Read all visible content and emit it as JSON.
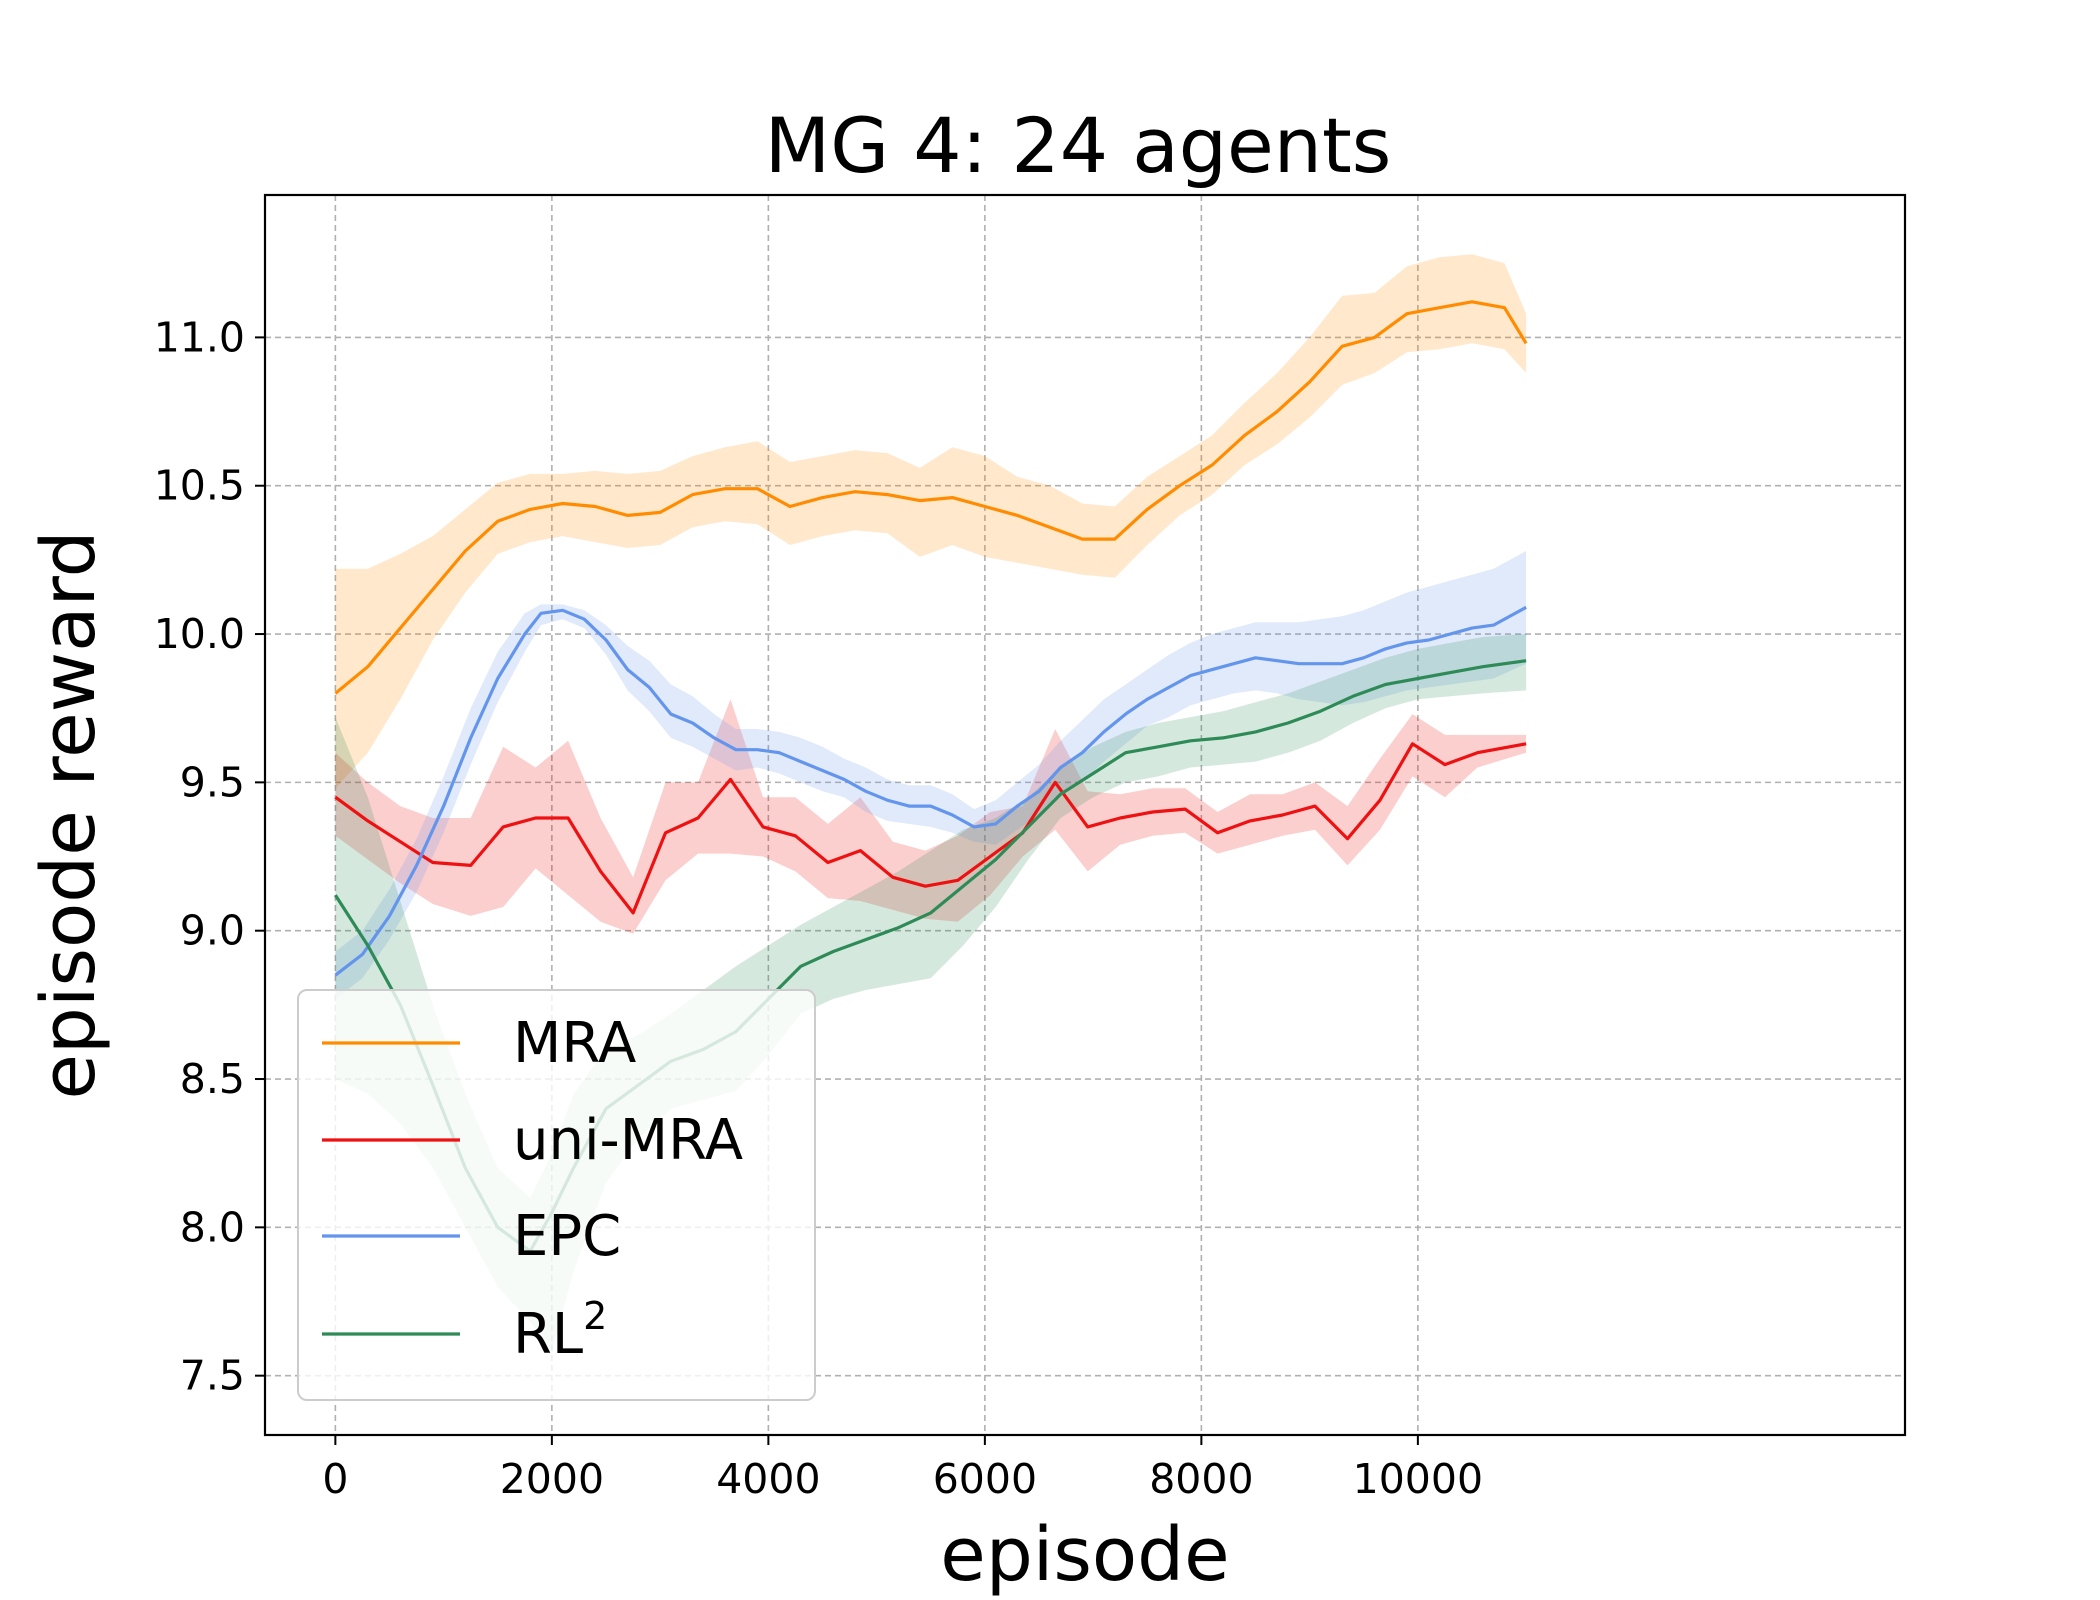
{
  "chart_data": {
    "type": "line",
    "title": "MG 4: 24 agents",
    "xlabel": "episode",
    "ylabel": "episode reward",
    "xlim": [
      -650,
      14500
    ],
    "ylim": [
      7.3,
      11.48
    ],
    "xticks": [
      0,
      2000,
      4000,
      6000,
      8000,
      10000
    ],
    "xtick_labels": [
      "0",
      "2000",
      "4000",
      "6000",
      "8000",
      "10000"
    ],
    "yticks": [
      7.5,
      8.0,
      8.5,
      9.0,
      9.5,
      10.0,
      10.5,
      11.0
    ],
    "ytick_labels": [
      "7.5",
      "8.0",
      "8.5",
      "9.0",
      "9.5",
      "10.0",
      "10.5",
      "11.0"
    ],
    "grid": true,
    "legend_position": "lower-left",
    "series": [
      {
        "name": "MRA",
        "label_main": "MRA",
        "label_sup": "",
        "color": "#ff8c00",
        "x": [
          0,
          300,
          600,
          900,
          1200,
          1500,
          1800,
          2100,
          2400,
          2700,
          3000,
          3300,
          3600,
          3900,
          4200,
          4500,
          4800,
          5100,
          5400,
          5700,
          6000,
          6300,
          6600,
          6900,
          7200,
          7500,
          7800,
          8100,
          8400,
          8700,
          9000,
          9300,
          9600,
          9900,
          10200,
          10500,
          10800,
          11000
        ],
        "y": [
          9.8,
          9.89,
          10.02,
          10.15,
          10.28,
          10.38,
          10.42,
          10.44,
          10.43,
          10.4,
          10.41,
          10.47,
          10.49,
          10.49,
          10.43,
          10.46,
          10.48,
          10.47,
          10.45,
          10.46,
          10.43,
          10.4,
          10.36,
          10.32,
          10.32,
          10.42,
          10.5,
          10.57,
          10.67,
          10.75,
          10.85,
          10.97,
          11.0,
          11.08,
          11.1,
          11.12,
          11.1,
          10.98
        ],
        "upper": [
          10.22,
          10.22,
          10.27,
          10.33,
          10.42,
          10.51,
          10.54,
          10.54,
          10.55,
          10.54,
          10.55,
          10.6,
          10.63,
          10.65,
          10.58,
          10.6,
          10.62,
          10.61,
          10.56,
          10.63,
          10.6,
          10.53,
          10.5,
          10.44,
          10.43,
          10.53,
          10.6,
          10.67,
          10.78,
          10.88,
          11.0,
          11.14,
          11.15,
          11.24,
          11.27,
          11.28,
          11.25,
          11.08
        ],
        "lower": [
          9.48,
          9.6,
          9.78,
          9.98,
          10.14,
          10.27,
          10.31,
          10.33,
          10.31,
          10.29,
          10.3,
          10.36,
          10.38,
          10.37,
          10.3,
          10.33,
          10.35,
          10.34,
          10.26,
          10.3,
          10.26,
          10.24,
          10.22,
          10.2,
          10.19,
          10.3,
          10.4,
          10.47,
          10.57,
          10.64,
          10.73,
          10.84,
          10.88,
          10.95,
          10.96,
          10.98,
          10.96,
          10.88
        ]
      },
      {
        "name": "uni-MRA",
        "label_main": "uni-MRA",
        "label_sup": "",
        "color": "#ee1111",
        "x": [
          0,
          300,
          600,
          900,
          1250,
          1550,
          1850,
          2150,
          2450,
          2750,
          3050,
          3350,
          3650,
          3950,
          4250,
          4550,
          4850,
          5150,
          5450,
          5750,
          6050,
          6350,
          6650,
          6950,
          7250,
          7550,
          7850,
          8150,
          8450,
          8750,
          9050,
          9350,
          9650,
          9950,
          10250,
          10550,
          11000
        ],
        "y": [
          9.45,
          9.37,
          9.3,
          9.23,
          9.22,
          9.35,
          9.38,
          9.38,
          9.2,
          9.06,
          9.33,
          9.38,
          9.51,
          9.35,
          9.32,
          9.23,
          9.27,
          9.18,
          9.15,
          9.17,
          9.25,
          9.33,
          9.5,
          9.35,
          9.38,
          9.4,
          9.41,
          9.33,
          9.37,
          9.39,
          9.42,
          9.31,
          9.44,
          9.63,
          9.56,
          9.6,
          9.63
        ],
        "upper": [
          9.6,
          9.5,
          9.42,
          9.38,
          9.38,
          9.62,
          9.55,
          9.64,
          9.38,
          9.18,
          9.5,
          9.5,
          9.78,
          9.45,
          9.45,
          9.36,
          9.45,
          9.3,
          9.27,
          9.32,
          9.4,
          9.42,
          9.68,
          9.47,
          9.46,
          9.48,
          9.48,
          9.4,
          9.46,
          9.46,
          9.5,
          9.42,
          9.58,
          9.73,
          9.66,
          9.66,
          9.66
        ],
        "lower": [
          9.32,
          9.24,
          9.16,
          9.09,
          9.05,
          9.08,
          9.21,
          9.12,
          9.03,
          8.99,
          9.17,
          9.26,
          9.26,
          9.25,
          9.2,
          9.11,
          9.1,
          9.07,
          9.04,
          9.03,
          9.12,
          9.25,
          9.34,
          9.2,
          9.29,
          9.32,
          9.33,
          9.26,
          9.29,
          9.32,
          9.34,
          9.22,
          9.34,
          9.52,
          9.45,
          9.55,
          9.6
        ]
      },
      {
        "name": "EPC",
        "label_main": "EPC",
        "label_sup": "",
        "color": "#6495ed",
        "x": [
          0,
          250,
          500,
          750,
          1000,
          1250,
          1500,
          1750,
          1900,
          2100,
          2300,
          2500,
          2700,
          2900,
          3100,
          3300,
          3500,
          3700,
          3900,
          4100,
          4300,
          4500,
          4700,
          4900,
          5100,
          5300,
          5500,
          5700,
          5900,
          6100,
          6300,
          6500,
          6700,
          6900,
          7100,
          7300,
          7500,
          7700,
          7900,
          8100,
          8300,
          8500,
          8700,
          8900,
          9100,
          9300,
          9500,
          9700,
          9900,
          10100,
          10300,
          10500,
          10700,
          11000
        ],
        "y": [
          8.85,
          8.92,
          9.05,
          9.22,
          9.42,
          9.65,
          9.85,
          10.0,
          10.07,
          10.08,
          10.05,
          9.98,
          9.88,
          9.82,
          9.73,
          9.7,
          9.65,
          9.61,
          9.61,
          9.6,
          9.57,
          9.54,
          9.51,
          9.47,
          9.44,
          9.42,
          9.42,
          9.39,
          9.35,
          9.36,
          9.42,
          9.47,
          9.55,
          9.6,
          9.67,
          9.73,
          9.78,
          9.82,
          9.86,
          9.88,
          9.9,
          9.92,
          9.91,
          9.9,
          9.9,
          9.9,
          9.92,
          9.95,
          9.97,
          9.98,
          10.0,
          10.02,
          10.03,
          10.09
        ],
        "upper": [
          8.93,
          9.0,
          9.14,
          9.31,
          9.52,
          9.75,
          9.94,
          10.07,
          10.1,
          10.1,
          10.08,
          10.03,
          9.96,
          9.91,
          9.83,
          9.79,
          9.73,
          9.68,
          9.68,
          9.67,
          9.65,
          9.62,
          9.58,
          9.55,
          9.51,
          9.49,
          9.49,
          9.46,
          9.41,
          9.44,
          9.5,
          9.56,
          9.64,
          9.71,
          9.78,
          9.83,
          9.88,
          9.93,
          9.97,
          10.0,
          10.02,
          10.04,
          10.04,
          10.04,
          10.05,
          10.06,
          10.08,
          10.11,
          10.14,
          10.16,
          10.18,
          10.2,
          10.22,
          10.28
        ],
        "lower": [
          8.77,
          8.84,
          8.97,
          9.13,
          9.33,
          9.56,
          9.77,
          9.94,
          10.03,
          10.05,
          10.02,
          9.93,
          9.81,
          9.74,
          9.65,
          9.62,
          9.58,
          9.54,
          9.55,
          9.53,
          9.5,
          9.47,
          9.45,
          9.4,
          9.37,
          9.36,
          9.35,
          9.33,
          9.3,
          9.29,
          9.34,
          9.39,
          9.46,
          9.5,
          9.57,
          9.63,
          9.69,
          9.72,
          9.76,
          9.78,
          9.8,
          9.81,
          9.8,
          9.78,
          9.77,
          9.76,
          9.77,
          9.79,
          9.81,
          9.82,
          9.83,
          9.84,
          9.85,
          9.9
        ]
      },
      {
        "name": "RL2",
        "label_main": "RL",
        "label_sup": "2",
        "color": "#2e8b57",
        "x": [
          0,
          300,
          600,
          900,
          1200,
          1500,
          1800,
          2000,
          2200,
          2500,
          2800,
          3100,
          3400,
          3700,
          4000,
          4300,
          4600,
          4900,
          5200,
          5500,
          5800,
          6100,
          6400,
          6700,
          7000,
          7300,
          7600,
          7900,
          8200,
          8500,
          8800,
          9100,
          9400,
          9700,
          10000,
          10300,
          10600,
          11000
        ],
        "y": [
          9.12,
          8.95,
          8.75,
          8.48,
          8.2,
          8.0,
          7.92,
          8.05,
          8.2,
          8.4,
          8.48,
          8.56,
          8.6,
          8.66,
          8.77,
          8.88,
          8.93,
          8.97,
          9.01,
          9.06,
          9.15,
          9.24,
          9.35,
          9.46,
          9.53,
          9.6,
          9.62,
          9.64,
          9.65,
          9.67,
          9.7,
          9.74,
          9.79,
          9.83,
          9.85,
          9.87,
          9.89,
          9.91
        ],
        "upper": [
          9.72,
          9.45,
          9.1,
          8.75,
          8.45,
          8.2,
          8.1,
          8.25,
          8.45,
          8.6,
          8.65,
          8.72,
          8.8,
          8.88,
          8.95,
          9.02,
          9.08,
          9.14,
          9.2,
          9.27,
          9.34,
          9.38,
          9.45,
          9.55,
          9.62,
          9.67,
          9.7,
          9.72,
          9.74,
          9.77,
          9.8,
          9.84,
          9.88,
          9.92,
          9.95,
          9.97,
          9.99,
          10.0
        ],
        "lower": [
          8.5,
          8.45,
          8.35,
          8.2,
          8.0,
          7.8,
          7.68,
          7.58,
          7.85,
          8.15,
          8.3,
          8.4,
          8.43,
          8.46,
          8.58,
          8.72,
          8.77,
          8.8,
          8.82,
          8.84,
          8.95,
          9.08,
          9.24,
          9.38,
          9.45,
          9.5,
          9.52,
          9.55,
          9.56,
          9.57,
          9.6,
          9.64,
          9.7,
          9.75,
          9.78,
          9.79,
          9.8,
          9.81
        ]
      }
    ]
  }
}
